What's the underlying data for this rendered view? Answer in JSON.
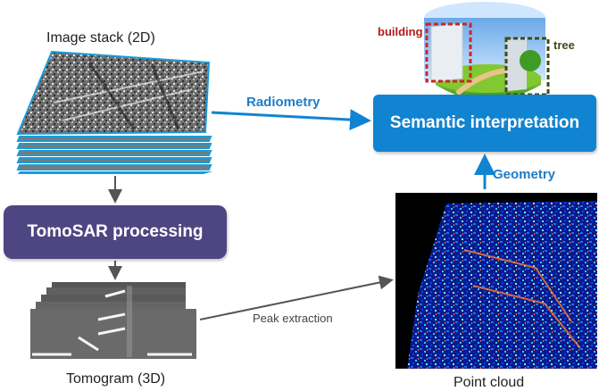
{
  "labels": {
    "image_stack": "Image stack (2D)",
    "tomogram": "Tomogram (3D)",
    "point_cloud": "Point cloud",
    "peak_extraction": "Peak extraction",
    "radiometry": "Radiometry",
    "geometry": "Geometry",
    "building": "building",
    "tree": "tree"
  },
  "boxes": {
    "tomosar": "TomoSAR processing",
    "semantic": "Semantic interpretation"
  },
  "colors": {
    "tomosar_box": "#4e4682",
    "semantic_box": "#1184d1",
    "blue_text": "#1f7cc6",
    "arrow_gray": "#555555",
    "building_box": "#b21a1a",
    "tree_box": "#3d4b1b"
  }
}
